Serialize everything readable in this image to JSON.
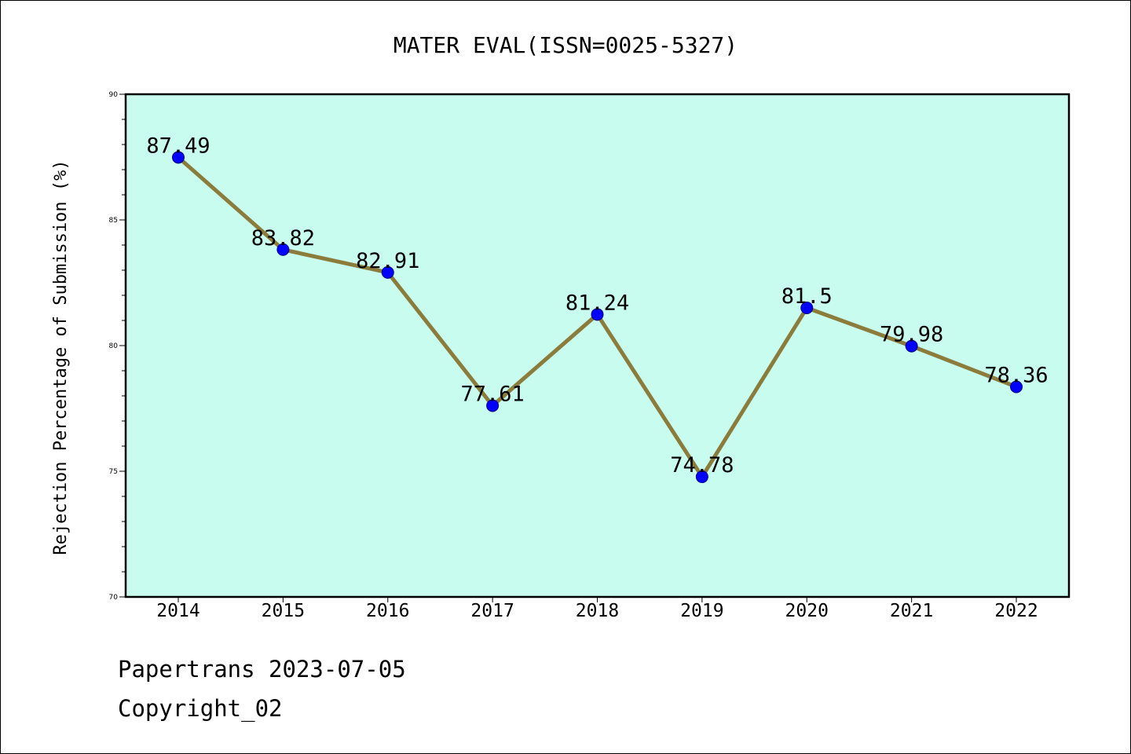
{
  "chart_data": {
    "type": "line",
    "title": "MATER EVAL(ISSN=0025-5327)",
    "xlabel": "",
    "ylabel": "Rejection Percentage of Submission (%)",
    "categories": [
      "2014",
      "2015",
      "2016",
      "2017",
      "2018",
      "2019",
      "2020",
      "2021",
      "2022"
    ],
    "values": [
      87.49,
      83.82,
      82.91,
      77.61,
      81.24,
      74.78,
      81.5,
      79.98,
      78.36
    ],
    "data_labels": [
      "87.49",
      "83.82",
      "82.91",
      "77.61",
      "81.24",
      "74.78",
      "81.5",
      "79.98",
      "78.36"
    ],
    "ylim": [
      70,
      90
    ],
    "yticks": [
      70,
      75,
      80,
      85,
      90
    ],
    "grid": false,
    "legend": "none",
    "colors": {
      "plot_background": "#c8fcee",
      "line": "#8c7c3c",
      "marker": "#0000ff",
      "marker_edge": "#00008b"
    }
  },
  "footer": {
    "line1": "Papertrans 2023-07-05",
    "line2": "Copyright_02"
  }
}
